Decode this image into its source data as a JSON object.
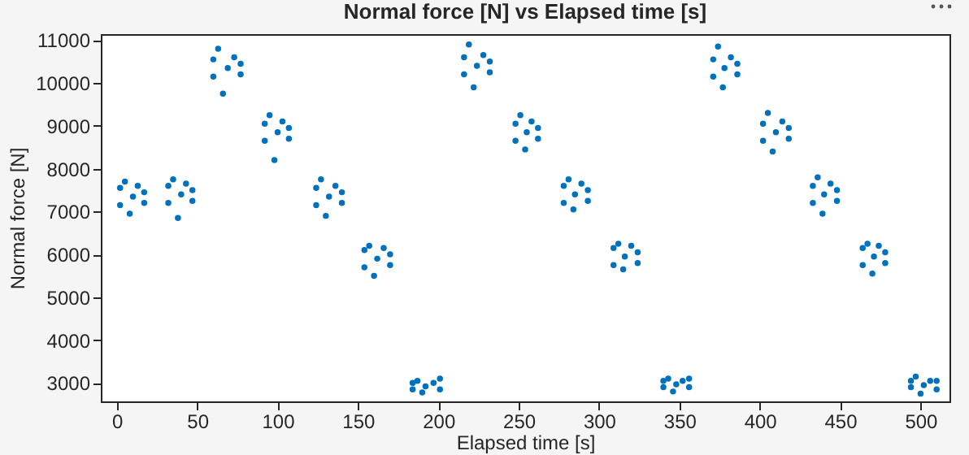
{
  "chart_data": {
    "type": "scatter",
    "title": "Normal force [N] vs Elapsed time [s]",
    "xlabel": "Elapsed time [s]",
    "ylabel": "Normal force [N]",
    "xlim": [
      -10,
      518
    ],
    "ylim": [
      2570,
      11140
    ],
    "xticks": [
      0,
      50,
      100,
      150,
      200,
      250,
      300,
      350,
      400,
      450,
      500
    ],
    "yticks": [
      3000,
      4000,
      5000,
      6000,
      7000,
      8000,
      9000,
      10000,
      11000
    ],
    "grid": false,
    "marker": "circle",
    "series": [
      {
        "color": "#0072bd",
        "x": [
          2,
          2,
          5,
          8,
          10,
          13,
          17,
          17,
          32,
          32,
          35,
          38,
          40,
          43,
          47,
          47,
          60,
          60,
          63,
          66,
          69,
          73,
          77,
          77,
          92,
          92,
          95,
          98,
          100,
          103,
          107,
          107,
          124,
          124,
          127,
          130,
          132,
          136,
          140,
          140,
          154,
          154,
          157,
          160,
          162,
          166,
          170,
          170,
          184,
          184,
          187,
          190,
          192,
          197,
          201,
          201,
          216,
          216,
          219,
          222,
          224,
          228,
          232,
          232,
          248,
          248,
          251,
          254,
          255,
          258,
          262,
          262,
          278,
          278,
          281,
          284,
          285,
          289,
          293,
          293,
          309,
          309,
          312,
          315,
          316,
          320,
          324,
          324,
          340,
          340,
          343,
          346,
          348,
          352,
          356,
          356,
          371,
          371,
          374,
          377,
          378,
          382,
          386,
          386,
          402,
          402,
          405,
          408,
          410,
          414,
          418,
          418,
          433,
          433,
          436,
          439,
          440,
          444,
          448,
          448,
          464,
          464,
          467,
          470,
          471,
          474,
          478,
          478,
          494,
          494,
          497,
          500,
          502,
          506,
          510,
          510
        ],
        "values": [
          7550,
          7150,
          7700,
          6950,
          7350,
          7600,
          7200,
          7450,
          7600,
          7200,
          7750,
          6850,
          7400,
          7650,
          7250,
          7500,
          10550,
          10150,
          10800,
          9750,
          10350,
          10600,
          10200,
          10450,
          9050,
          8650,
          9250,
          8200,
          8850,
          9100,
          8700,
          8950,
          7550,
          7150,
          7750,
          6900,
          7350,
          7600,
          7200,
          7450,
          6100,
          5700,
          6200,
          5500,
          5900,
          6150,
          5750,
          6000,
          3000,
          2850,
          3050,
          2780,
          2920,
          3000,
          2850,
          3100,
          10600,
          10200,
          10900,
          9900,
          10400,
          10650,
          10250,
          10500,
          9050,
          8650,
          9250,
          8450,
          8850,
          9100,
          8700,
          8950,
          7600,
          7200,
          7750,
          7050,
          7400,
          7650,
          7250,
          7500,
          6150,
          5750,
          6250,
          5650,
          5950,
          6200,
          5800,
          6050,
          3050,
          2900,
          3100,
          2800,
          2970,
          3050,
          2900,
          3100,
          10550,
          10150,
          10850,
          9900,
          10350,
          10600,
          10200,
          10450,
          9050,
          8650,
          9300,
          8400,
          8850,
          9100,
          8700,
          8950,
          7600,
          7200,
          7800,
          6950,
          7400,
          7650,
          7250,
          7500,
          6150,
          5750,
          6250,
          5550,
          5950,
          6200,
          5800,
          6050,
          3050,
          2900,
          3150,
          2750,
          2950,
          3050,
          2850,
          3050
        ]
      }
    ]
  }
}
